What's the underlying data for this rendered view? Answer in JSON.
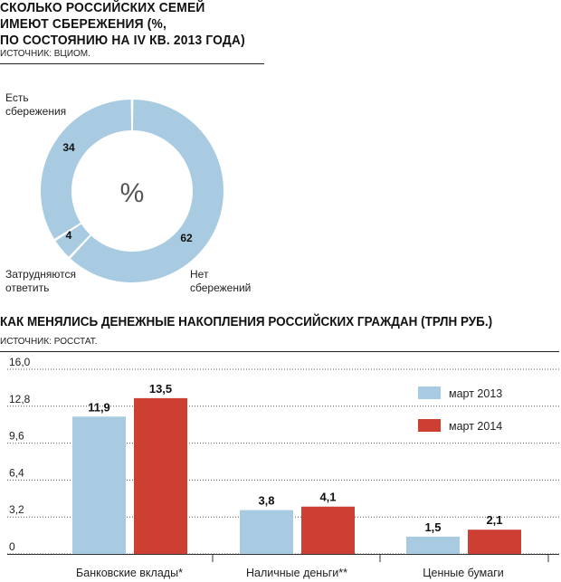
{
  "chart_data": [
    {
      "type": "pie",
      "title": "СКОЛЬКО РОССИЙСКИХ СЕМЕЙ ИМЕЮТ СБЕРЕЖЕНИЯ (%, ПО СОСТОЯНИЮ НА IV КВ. 2013 ГОДА)",
      "title_lines": [
        "СКОЛЬКО РОССИЙСКИХ СЕМЕЙ",
        "ИМЕЮТ СБЕРЕЖЕНИЯ (%,",
        "ПО СОСТОЯНИЮ НА IV КВ. 2013 ГОДА)"
      ],
      "source": "ИСТОЧНИК: ВЦИОМ.",
      "center_label": "%",
      "slices": [
        {
          "label": "Нет сбережений",
          "label_lines": [
            "Нет",
            "сбережений"
          ],
          "value": 62,
          "value_label": "62"
        },
        {
          "label": "Затрудняются ответить",
          "label_lines": [
            "Затрудняются",
            "ответить"
          ],
          "value": 4,
          "value_label": "4"
        },
        {
          "label": "Есть сбережения",
          "label_lines": [
            "Есть",
            "сбережения"
          ],
          "value": 34,
          "value_label": "34"
        }
      ],
      "color": "#a8cbe2"
    },
    {
      "type": "bar",
      "title": "КАК МЕНЯЛИСЬ ДЕНЕЖНЫЕ НАКОПЛЕНИЯ РОССИЙСКИХ ГРАЖДАН (ТРЛН РУБ.)",
      "source": "ИСТОЧНИК: РОССТАТ.",
      "categories": [
        "Банковские вклады*",
        "Наличные деньги**",
        "Ценные бумаги"
      ],
      "series": [
        {
          "name": "март 2013",
          "values": [
            11.9,
            3.8,
            1.5
          ],
          "labels": [
            "11,9",
            "3,8",
            "1,5"
          ],
          "color": "#a8cbe2"
        },
        {
          "name": "март 2014",
          "values": [
            13.5,
            4.1,
            2.1
          ],
          "labels": [
            "13,5",
            "4,1",
            "2,1"
          ],
          "color": "#cd3e33"
        }
      ],
      "ylim": [
        0,
        16
      ],
      "yticks": [
        {
          "value": 0,
          "label": "0"
        },
        {
          "value": 3.2,
          "label": "3,2"
        },
        {
          "value": 6.4,
          "label": "6,4"
        },
        {
          "value": 9.6,
          "label": "9,6"
        },
        {
          "value": 12.8,
          "label": "12,8"
        },
        {
          "value": 16,
          "label": "16,0"
        }
      ],
      "grid": "dashed horizontal",
      "legend": "top-right"
    }
  ]
}
